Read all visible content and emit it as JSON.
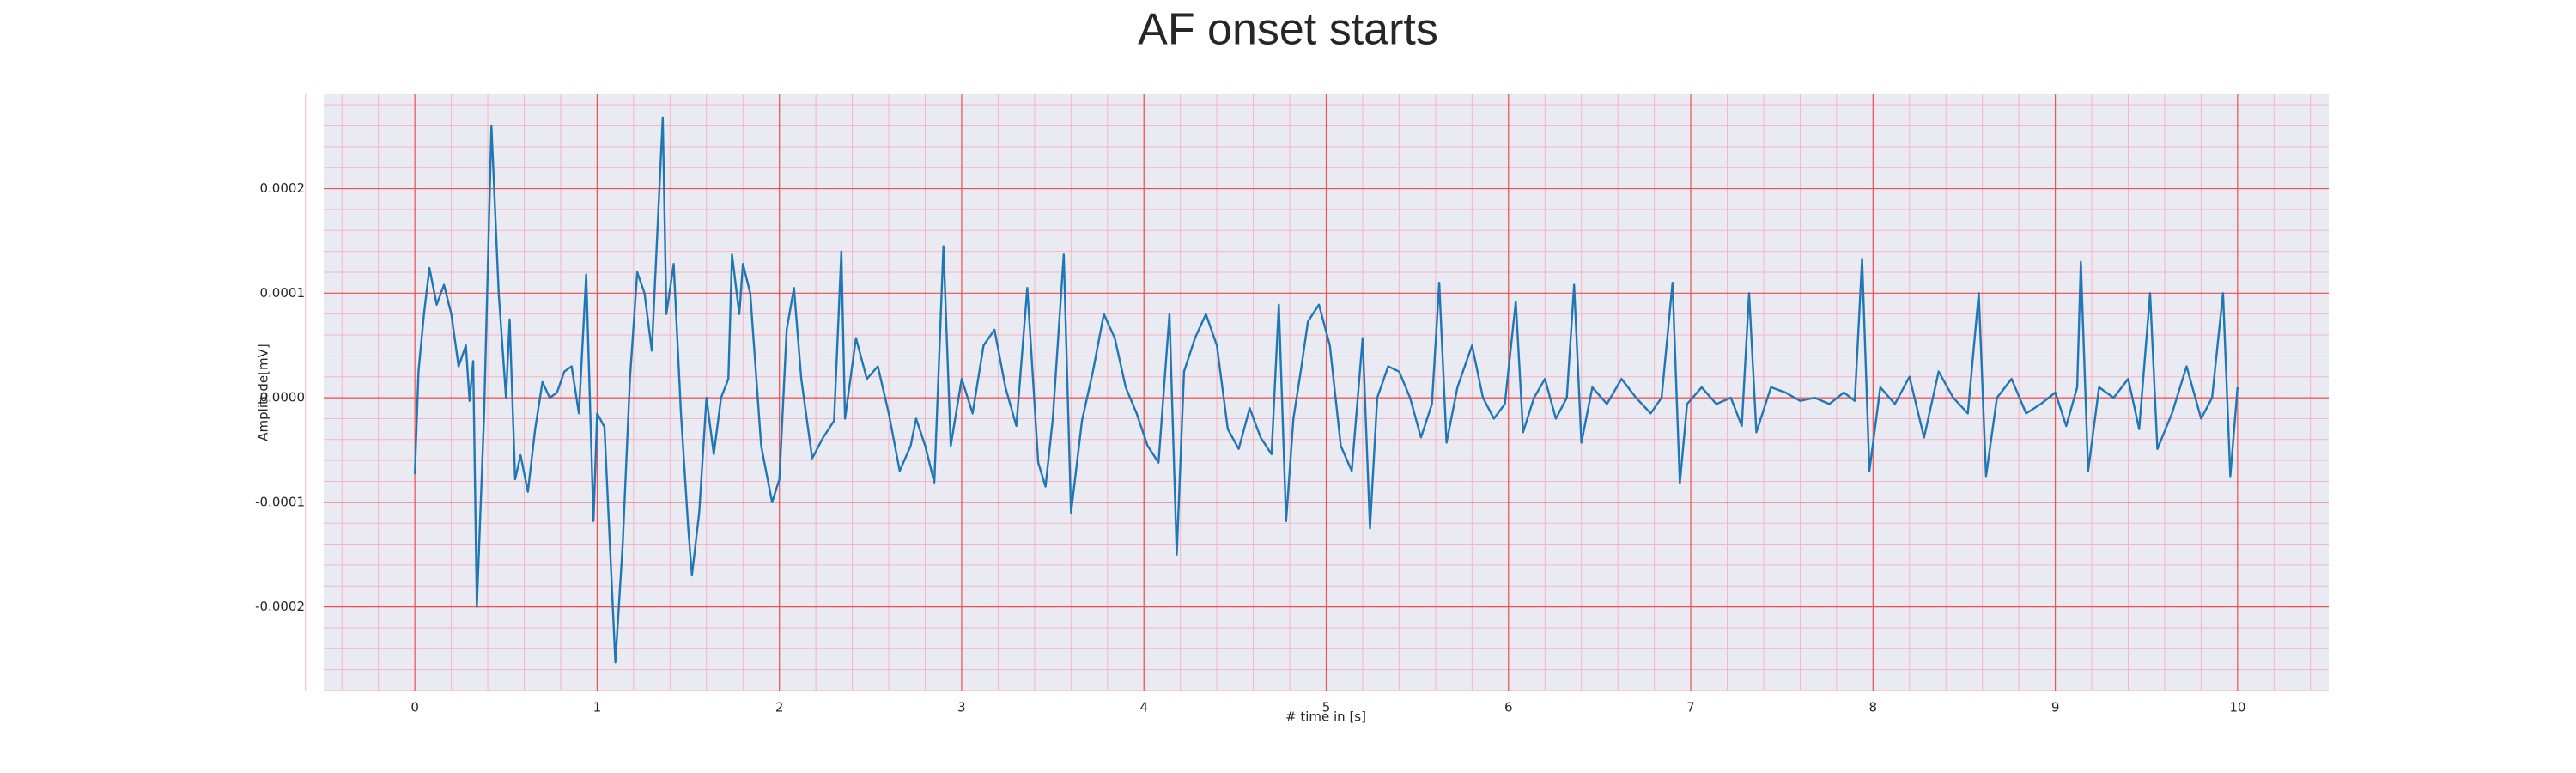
{
  "chart_data": {
    "type": "line",
    "title": "AF onset starts",
    "xlabel": "# time in [s]",
    "ylabel": "Amplitude[mV]",
    "color": "#1f77b4",
    "grid": true,
    "minor_grid": true,
    "xlim": [
      -0.5,
      10.5
    ],
    "xticks": [
      0,
      1,
      2,
      3,
      4,
      5,
      6,
      7,
      8,
      9,
      10
    ],
    "ylim": [
      -0.00028,
      0.00029
    ],
    "yticks": [
      -0.0002,
      -0.0001,
      {
        "value": 0,
        "label": "0.0000"
      },
      0.0001,
      0.0002
    ],
    "x": [
      0,
      0.02,
      0.05,
      0.08,
      0.12,
      0.16,
      0.2,
      0.24,
      0.28,
      0.3,
      0.32,
      0.34,
      0.38,
      0.42,
      0.46,
      0.5,
      0.52,
      0.55,
      0.58,
      0.62,
      0.66,
      0.7,
      0.74,
      0.78,
      0.82,
      0.86,
      0.9,
      0.94,
      0.98,
      1.0,
      1.04,
      1.1,
      1.14,
      1.18,
      1.22,
      1.26,
      1.3,
      1.36,
      1.38,
      1.42,
      1.46,
      1.5,
      1.52,
      1.56,
      1.6,
      1.64,
      1.68,
      1.72,
      1.74,
      1.78,
      1.8,
      1.84,
      1.9,
      1.96,
      2.0,
      2.04,
      2.08,
      2.12,
      2.18,
      2.24,
      2.3,
      2.34,
      2.36,
      2.42,
      2.48,
      2.54,
      2.6,
      2.66,
      2.72,
      2.75,
      2.8,
      2.85,
      2.9,
      2.94,
      3.0,
      3.06,
      3.12,
      3.18,
      3.24,
      3.3,
      3.36,
      3.42,
      3.46,
      3.5,
      3.56,
      3.6,
      3.66,
      3.72,
      3.78,
      3.84,
      3.9,
      3.96,
      4.02,
      4.08,
      4.14,
      4.18,
      4.22,
      4.28,
      4.34,
      4.4,
      4.46,
      4.52,
      4.58,
      4.64,
      4.7,
      4.74,
      4.78,
      4.82,
      4.86,
      4.9,
      4.96,
      5.02,
      5.08,
      5.14,
      5.2,
      5.24,
      5.28,
      5.34,
      5.4,
      5.46,
      5.52,
      5.58,
      5.62,
      5.66,
      5.72,
      5.8,
      5.86,
      5.92,
      5.98,
      6.04,
      6.08,
      6.14,
      6.2,
      6.26,
      6.32,
      6.36,
      6.4,
      6.46,
      6.54,
      6.62,
      6.7,
      6.78,
      6.84,
      6.9,
      6.94,
      6.98,
      7.06,
      7.14,
      7.22,
      7.28,
      7.32,
      7.36,
      7.44,
      7.52,
      7.6,
      7.68,
      7.76,
      7.84,
      7.9,
      7.94,
      7.98,
      8.04,
      8.12,
      8.2,
      8.28,
      8.36,
      8.44,
      8.52,
      8.58,
      8.62,
      8.68,
      8.76,
      8.84,
      8.92,
      9.0,
      9.06,
      9.12,
      9.14,
      9.18,
      9.24,
      9.32,
      9.4,
      9.46,
      9.52,
      9.56,
      9.64,
      9.72,
      9.8,
      9.86,
      9.92,
      9.96,
      10.0
    ],
    "values": [
      -7.3e-05,
      2.5e-05,
      8e-05,
      0.000124,
      8.9e-05,
      0.000108,
      8e-05,
      3e-05,
      5e-05,
      -3e-06,
      3.5e-05,
      -0.0002,
      -1.5e-05,
      0.00026,
      0.0001,
      0,
      7.5e-05,
      -7.8e-05,
      -5.5e-05,
      -9e-05,
      -3e-05,
      1.5e-05,
      0,
      5e-06,
      2.5e-05,
      3e-05,
      -1.5e-05,
      0.000118,
      -0.000118,
      -1.5e-05,
      -2.8e-05,
      -0.000253,
      -0.000141,
      1.8e-05,
      0.00012,
      0.0001,
      4.5e-05,
      0.000268,
      8e-05,
      0.000128,
      -1.5e-05,
      -0.000125,
      -0.00017,
      -0.00011,
      0,
      -5.4e-05,
      0,
      1.8e-05,
      0.000137,
      8e-05,
      0.000128,
      0.0001,
      -4.6e-05,
      -0.0001,
      -7.8e-05,
      6.5e-05,
      0.000105,
      1.8e-05,
      -5.8e-05,
      -3.8e-05,
      -2.2e-05,
      0.00014,
      -2e-05,
      5.7e-05,
      1.8e-05,
      3e-05,
      -1.5e-05,
      -7e-05,
      -4.6e-05,
      -2e-05,
      -4.6e-05,
      -8.1e-05,
      0.000145,
      -4.6e-05,
      1.8e-05,
      -1.5e-05,
      5e-05,
      6.5e-05,
      1e-05,
      -2.7e-05,
      0.000105,
      -6.2e-05,
      -8.5e-05,
      -2e-05,
      0.000137,
      -0.00011,
      -2.2e-05,
      2.5e-05,
      8e-05,
      5.7e-05,
      1e-05,
      -1.5e-05,
      -4.6e-05,
      -6.2e-05,
      8e-05,
      -0.00015,
      2.5e-05,
      5.7e-05,
      8e-05,
      5e-05,
      -3e-05,
      -4.9e-05,
      -1e-05,
      -3.8e-05,
      -5.4e-05,
      8.9e-05,
      -0.000118,
      -2e-05,
      2.5e-05,
      7.3e-05,
      8.9e-05,
      5e-05,
      -4.6e-05,
      -7e-05,
      5.7e-05,
      -0.000125,
      0,
      3e-05,
      2.5e-05,
      0,
      -3.8e-05,
      -6e-06,
      0.00011,
      -4.3e-05,
      1e-05,
      5e-05,
      0,
      -2e-05,
      -6e-06,
      9.2e-05,
      -3.3e-05,
      0,
      1.8e-05,
      -2e-05,
      0,
      0.000108,
      -4.3e-05,
      1e-05,
      -6e-06,
      1.8e-05,
      0,
      -1.5e-05,
      0,
      0.00011,
      -8.2e-05,
      -6e-06,
      1e-05,
      -6e-06,
      0,
      -2.7e-05,
      0.0001,
      -3.3e-05,
      1e-05,
      5e-06,
      -3e-06,
      0,
      -6e-06,
      5e-06,
      -3e-06,
      0.000133,
      -7e-05,
      1e-05,
      -6e-06,
      2e-05,
      -3.8e-05,
      2.5e-05,
      0,
      -1.5e-05,
      0.0001,
      -7.5e-05,
      0,
      1.8e-05,
      -1.5e-05,
      -6e-06,
      5e-06,
      -2.7e-05,
      1e-05,
      0.00013,
      -7e-05,
      1e-05,
      0,
      1.8e-05,
      -3e-05,
      0.0001,
      -4.9e-05,
      -1.5e-05,
      3e-05,
      -2e-05,
      0,
      0.0001,
      -7.5e-05,
      1e-05
    ]
  }
}
